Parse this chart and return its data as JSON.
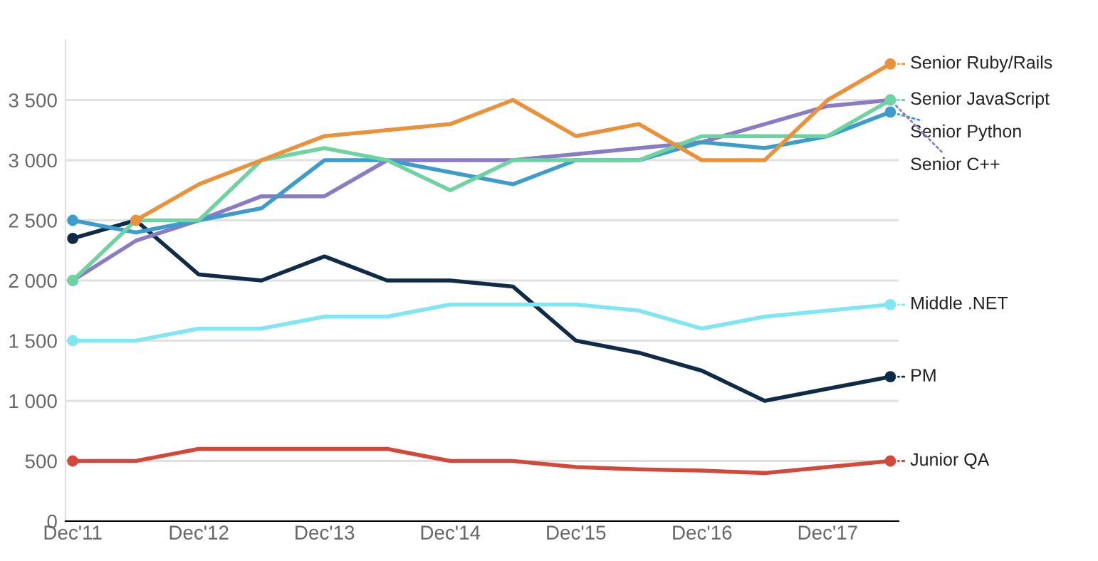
{
  "chart_data": {
    "type": "line",
    "x": [
      "2011-12",
      "2012-06",
      "2012-12",
      "2013-06",
      "2013-12",
      "2014-06",
      "2014-12",
      "2015-06",
      "2015-12",
      "2016-06",
      "2016-12",
      "2017-06",
      "2017-12",
      "2018-06"
    ],
    "series": [
      {
        "name": "Senior Ruby/Rails",
        "color": "#ea923a",
        "values": [
          null,
          2500,
          2800,
          3000,
          3200,
          3250,
          3300,
          3500,
          3200,
          3300,
          3000,
          3000,
          3500,
          3800
        ]
      },
      {
        "name": "Senior JavaScript",
        "color": "#6ed3a0",
        "values": [
          2000,
          2500,
          2500,
          3000,
          3100,
          3000,
          2750,
          3000,
          3000,
          3000,
          3200,
          3200,
          3200,
          3500
        ]
      },
      {
        "name": "Senior Python",
        "color": "#3d9ccb",
        "values": [
          2500,
          2400,
          2500,
          2600,
          3000,
          3000,
          2900,
          2800,
          3000,
          3000,
          3150,
          3100,
          3200,
          3400
        ]
      },
      {
        "name": "Senior C++",
        "color": "#8b7bc4",
        "values": [
          2000,
          2330,
          2500,
          2700,
          2700,
          3000,
          3000,
          3000,
          3050,
          3100,
          3150,
          3300,
          3450,
          3500
        ]
      },
      {
        "name": "Middle .NET",
        "color": "#80e6f2",
        "values": [
          1500,
          1500,
          1600,
          1600,
          1700,
          1700,
          1800,
          1800,
          1800,
          1750,
          1600,
          1700,
          1750,
          1800
        ]
      },
      {
        "name": "PM",
        "color": "#0f2b48",
        "values": [
          2350,
          2500,
          2050,
          2000,
          2200,
          2000,
          2000,
          1950,
          1500,
          1400,
          1250,
          1000,
          1100,
          1200
        ]
      },
      {
        "name": "Junior QA",
        "color": "#d2493a",
        "values": [
          500,
          500,
          600,
          600,
          600,
          600,
          500,
          500,
          450,
          430,
          420,
          400,
          450,
          500
        ]
      }
    ],
    "xlim": [
      "2011-11-10",
      "2018-06-25"
    ],
    "xticks": [
      {
        "value": "2011-12",
        "label": "Dec'11"
      },
      {
        "value": "2012-12",
        "label": "Dec'12"
      },
      {
        "value": "2013-12",
        "label": "Dec'13"
      },
      {
        "value": "2014-12",
        "label": "Dec'14"
      },
      {
        "value": "2015-12",
        "label": "Dec'15"
      },
      {
        "value": "2016-12",
        "label": "Dec'16"
      },
      {
        "value": "2017-12",
        "label": "Dec'17"
      }
    ],
    "ylim": [
      0,
      4000
    ],
    "yticks": [
      0,
      500,
      {
        "value": 1000,
        "label": "1 000"
      },
      {
        "value": 1500,
        "label": "1 500"
      },
      {
        "value": 2000,
        "label": "2 000"
      },
      {
        "value": 2500,
        "label": "2 500"
      },
      {
        "value": 3000,
        "label": "3 000"
      },
      {
        "value": 3500,
        "label": "3 500"
      }
    ],
    "grid": "y",
    "legend": "right",
    "line_style": "solid"
  }
}
